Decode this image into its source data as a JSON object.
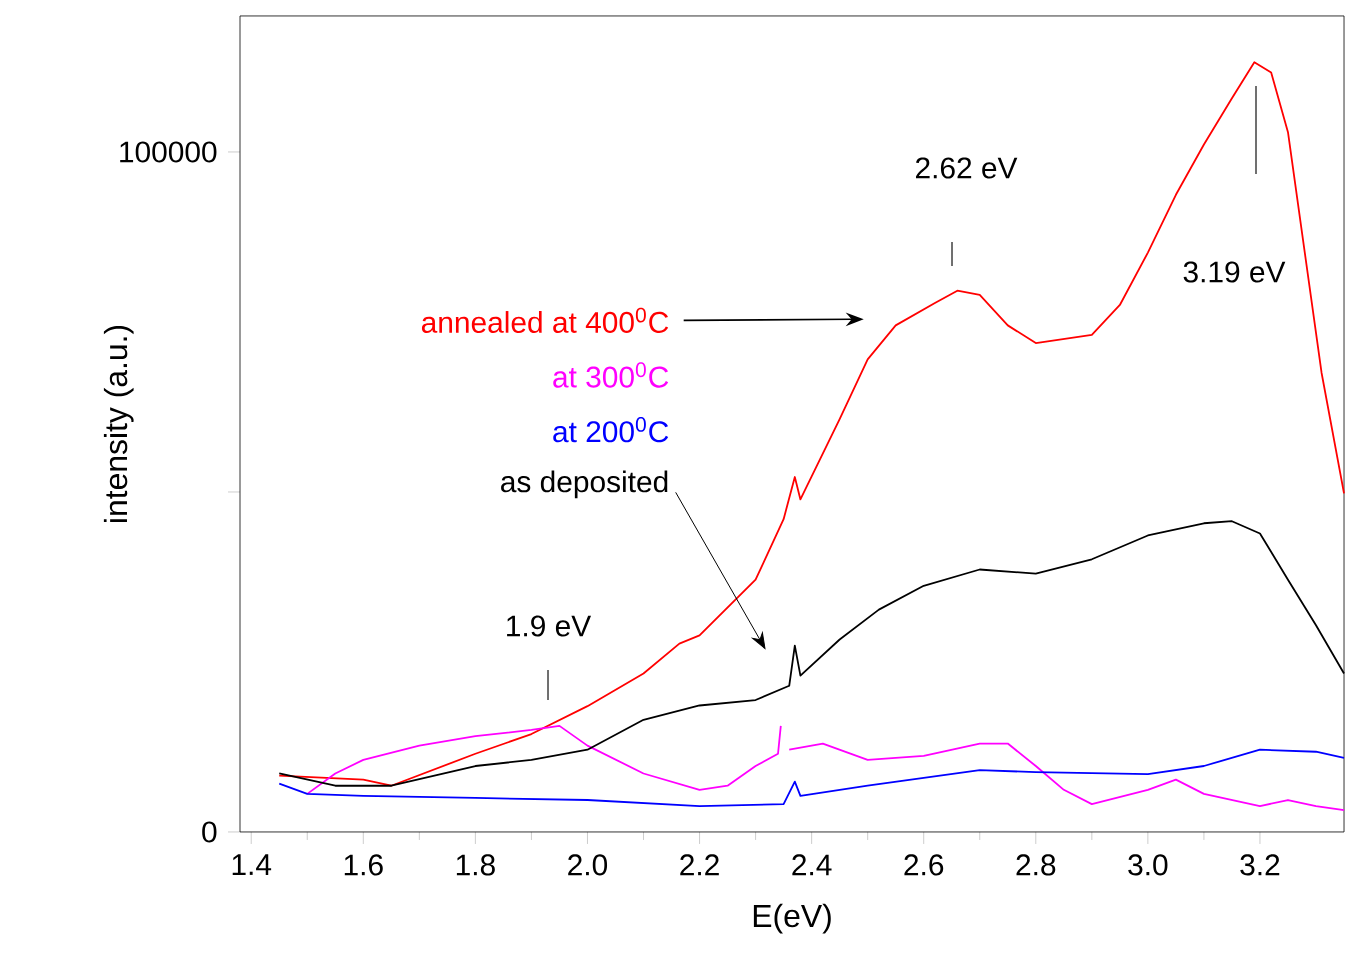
{
  "chart_data": {
    "type": "line",
    "xlabel": "E(eV)",
    "ylabel": "intensity (a.u.)",
    "xlim": [
      1.38,
      3.35
    ],
    "ylim": [
      0,
      120000
    ],
    "xticks": [
      1.4,
      1.6,
      1.8,
      {
        "value": 2,
        "label": "2.0"
      },
      2.2,
      2.4,
      2.6,
      2.8,
      {
        "value": 3,
        "label": "3.0"
      },
      3.2
    ],
    "yticks": [
      0,
      {
        "value": 50000,
        "label": null
      },
      100000
    ],
    "series": [
      {
        "name": "annealed at 400$^{0}$C",
        "color": "#ff0000",
        "x": [
          1.45,
          1.6,
          1.65,
          1.8,
          1.9,
          2.0,
          2.1,
          2.164,
          2.2,
          2.3,
          2.35,
          2.37,
          2.38,
          2.45,
          2.5,
          2.55,
          2.62,
          2.66,
          2.7,
          2.75,
          2.8,
          2.9,
          2.95,
          3.0,
          3.05,
          3.1,
          3.15,
          3.19,
          3.22,
          3.25,
          3.28,
          3.31,
          3.35
        ],
        "values": [
          8300,
          7700,
          6800,
          11500,
          14400,
          18500,
          23300,
          27700,
          28900,
          37100,
          46000,
          52200,
          48900,
          60700,
          69500,
          74500,
          77800,
          79600,
          79000,
          74500,
          71900,
          73100,
          77500,
          85200,
          93700,
          101100,
          107900,
          113200,
          111700,
          102900,
          85200,
          67500,
          49800
        ]
      },
      {
        "name": "at 300$^{0}$C",
        "color": "#ff00ff",
        "x": [
          1.5,
          1.55,
          1.6,
          1.7,
          1.8,
          1.9,
          1.95,
          2.0,
          2.1,
          2.2,
          2.25,
          2.3,
          2.34,
          2.345,
          2.35,
          2.36,
          2.42,
          2.5,
          2.6,
          2.7,
          2.75,
          2.8,
          2.85,
          2.9,
          3.0,
          3.05,
          3.1,
          3.2,
          3.25,
          3.3,
          3.35
        ],
        "values": [
          5600,
          8600,
          10600,
          12700,
          14100,
          15000,
          15600,
          12700,
          8600,
          6200,
          6800,
          9700,
          11500,
          15600,
          null,
          12100,
          13000,
          10600,
          11200,
          13000,
          13000,
          9700,
          6200,
          4100,
          6200,
          7700,
          5600,
          3800,
          4700,
          3800,
          3200
        ]
      },
      {
        "name": "at 200$^{0}$C",
        "color": "#0000ff",
        "x": [
          1.45,
          1.5,
          1.6,
          1.8,
          2.0,
          2.2,
          2.35,
          2.37,
          2.38,
          2.5,
          2.7,
          2.8,
          3.0,
          3.1,
          3.2,
          3.3,
          3.35
        ],
        "values": [
          7100,
          5600,
          5300,
          5000,
          4700,
          3800,
          4100,
          7400,
          5300,
          6800,
          9100,
          8800,
          8500,
          9700,
          12100,
          11800,
          10900
        ]
      },
      {
        "name": "as deposited",
        "color": "#000000",
        "x": [
          1.45,
          1.55,
          1.65,
          1.8,
          1.9,
          2.0,
          2.1,
          2.2,
          2.3,
          2.36,
          2.37,
          2.38,
          2.45,
          2.52,
          2.6,
          2.7,
          2.8,
          2.9,
          3.0,
          3.1,
          3.15,
          3.2,
          3.25,
          3.3,
          3.35
        ],
        "values": [
          8600,
          6800,
          6800,
          9700,
          10600,
          12100,
          16500,
          18600,
          19400,
          21500,
          27400,
          23000,
          28300,
          32700,
          36200,
          38600,
          38000,
          40100,
          43600,
          45400,
          45700,
          43900,
          37100,
          30400,
          23300
        ]
      }
    ],
    "annotations": [
      "1.9 eV",
      "2.62 eV",
      "3.19 eV"
    ]
  }
}
